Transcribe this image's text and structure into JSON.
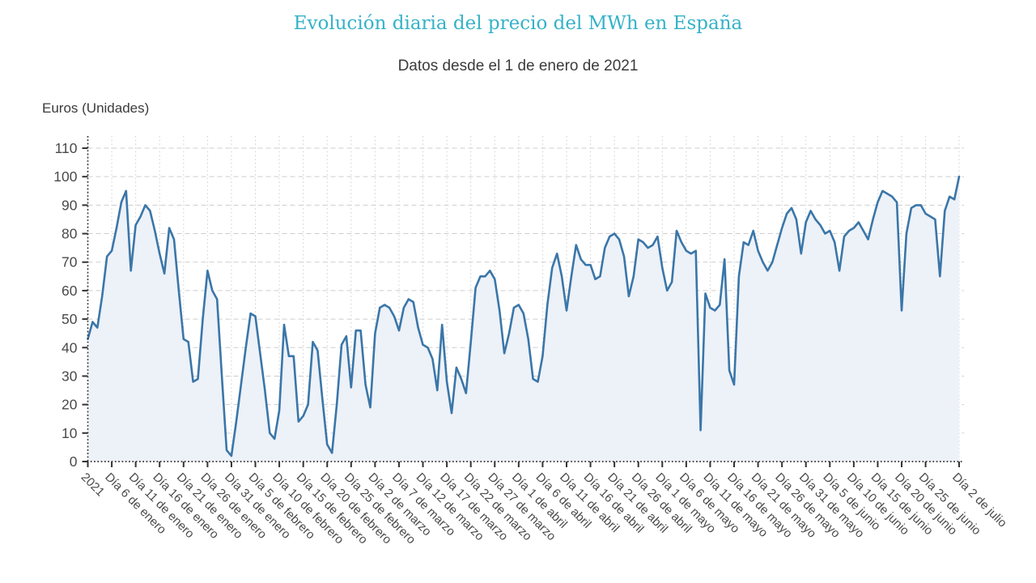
{
  "chart_data": {
    "type": "area",
    "title": "Evolución diaria del precio del MWh en España",
    "subtitle": "Datos desde el 1 de enero de 2021",
    "ylabel": "Euros (Unidades)",
    "ylim": [
      0,
      110
    ],
    "ytick_step": 10,
    "grid": true,
    "legend": false,
    "x_label_rotation": 45,
    "x_tick_indices": [
      0,
      5,
      10,
      15,
      20,
      25,
      30,
      35,
      40,
      45,
      50,
      55,
      60,
      65,
      70,
      75,
      80,
      85,
      90,
      95,
      100,
      105,
      110,
      115,
      120,
      125,
      130,
      135,
      140,
      145,
      150,
      155,
      160,
      165,
      170,
      175,
      182
    ],
    "x_tick_labels": [
      "2021",
      "Día 6 de enero",
      "Día 11 de enero",
      "Día 16 de enero",
      "Día 21 de enero",
      "Día 26 de enero",
      "Día 31 de enero",
      "Día 5 de febrero",
      "Día 10 de febrero",
      "Día 15 de febrero",
      "Día 20 de febrero",
      "Día 25 de febrero",
      "Día 2 de marzo",
      "Día 7 de marzo",
      "Día 12 de marzo",
      "Día 17 de marzo",
      "Día 22 de marzo",
      "Día 27 de marzo",
      "Día 1 de abril",
      "Día 6 de abril",
      "Día 11 de abril",
      "Día 16 de abril",
      "Día 21 de abril",
      "Día 26 de abril",
      "Día 1 de mayo",
      "Día 6 de mayo",
      "Día 11 de mayo",
      "Día 16 de mayo",
      "Día 21 de mayo",
      "Día 26 de mayo",
      "Día 31 de mayo",
      "Día 5 de junio",
      "Día 10 de junio",
      "Día 15 de junio",
      "Día 20 de junio",
      "Día 25 de junio",
      "Día 2 de julio"
    ],
    "values": [
      43,
      49,
      47,
      58,
      72,
      74,
      82,
      91,
      95,
      67,
      83,
      86,
      90,
      88,
      81,
      73,
      66,
      82,
      78,
      60,
      43,
      42,
      28,
      29,
      50,
      67,
      60,
      57,
      30,
      4,
      2,
      14,
      27,
      40,
      52,
      51,
      38,
      25,
      10,
      8,
      18,
      48,
      37,
      37,
      14,
      16,
      20,
      42,
      39,
      22,
      6,
      3,
      20,
      41,
      44,
      26,
      46,
      46,
      27,
      19,
      45,
      54,
      55,
      54,
      51,
      46,
      54,
      57,
      56,
      47,
      41,
      40,
      36,
      25,
      48,
      28,
      17,
      33,
      29,
      24,
      42,
      61,
      65,
      65,
      67,
      64,
      53,
      38,
      45,
      54,
      55,
      52,
      43,
      29,
      28,
      37,
      55,
      68,
      73,
      65,
      53,
      65,
      76,
      71,
      69,
      69,
      64,
      65,
      75,
      79,
      80,
      78,
      72,
      58,
      65,
      78,
      77,
      75,
      76,
      79,
      68,
      60,
      63,
      81,
      77,
      74,
      73,
      74,
      11,
      59,
      54,
      53,
      55,
      71,
      32,
      27,
      65,
      77,
      76,
      81,
      74,
      70,
      67,
      70,
      76,
      82,
      87,
      89,
      85,
      73,
      84,
      88,
      85,
      83,
      80,
      81,
      77,
      67,
      79,
      81,
      82,
      84,
      81,
      78,
      85,
      91,
      95,
      94,
      93,
      91,
      53,
      80,
      89,
      90,
      90,
      87,
      86,
      85,
      65,
      88,
      93,
      92,
      100
    ]
  },
  "colors": {
    "line": "#3a76a8",
    "area_fill": "#edf1f8",
    "grid": "#cdcdcd",
    "axis": "#333333",
    "title": "#35b2c8",
    "subtitle_text": "#3b3b3b",
    "tick_text": "#4a4a4a",
    "background": "#ffffff"
  }
}
